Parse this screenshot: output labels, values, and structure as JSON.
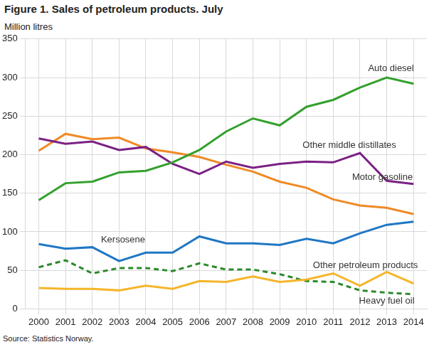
{
  "chart_data": {
    "type": "line",
    "title": "Figure 1. Sales of petroleum products. July",
    "y_label": "Million litres",
    "source": "Source: Statistics Norway.",
    "categories": [
      "2000",
      "2001",
      "2002",
      "2003",
      "2004",
      "2005",
      "2006",
      "2007",
      "2008",
      "2009",
      "2010",
      "2011",
      "2012",
      "2013",
      "2014"
    ],
    "series": [
      {
        "name": "Auto diesel",
        "color": "#33a02c",
        "line_style": "solid",
        "values": [
          141,
          163,
          165,
          177,
          179,
          190,
          206,
          230,
          247,
          238,
          262,
          271,
          287,
          300,
          292
        ]
      },
      {
        "name": "Other middle distillates",
        "color": "#7b2185",
        "line_style": "solid",
        "values": [
          221,
          214,
          217,
          206,
          210,
          188,
          175,
          191,
          183,
          188,
          191,
          190,
          202,
          166,
          162
        ]
      },
      {
        "name": "Motor gasoline",
        "color": "#f08a24",
        "line_style": "solid",
        "values": [
          205,
          227,
          220,
          222,
          208,
          203,
          197,
          187,
          178,
          165,
          157,
          142,
          134,
          131,
          123
        ]
      },
      {
        "name": "Kersosene",
        "color": "#1f77c4",
        "line_style": "solid",
        "values": [
          84,
          78,
          80,
          62,
          73,
          73,
          94,
          85,
          85,
          83,
          91,
          85,
          98,
          109,
          113
        ]
      },
      {
        "name": "Other petroleum products",
        "color": "#f5b52a",
        "line_style": "solid",
        "values": [
          27,
          26,
          26,
          24,
          30,
          26,
          36,
          35,
          42,
          35,
          38,
          46,
          30,
          48,
          33
        ]
      },
      {
        "name": "Heavy fuel oil",
        "color": "#2a8a2a",
        "line_style": "dashed",
        "values": [
          54,
          63,
          46,
          53,
          53,
          49,
          59,
          51,
          51,
          45,
          36,
          35,
          24,
          21,
          19
        ]
      }
    ],
    "ylim": [
      0,
      350
    ],
    "yticks": [
      0,
      50,
      100,
      150,
      200,
      250,
      300,
      350
    ],
    "grid": true
  }
}
